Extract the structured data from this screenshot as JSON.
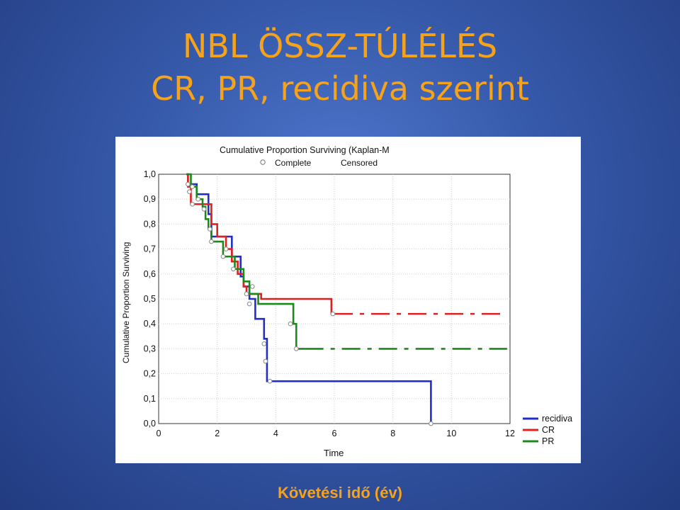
{
  "slide": {
    "title_line1": "NBL ÖSSZ-TÚLÉLÉS",
    "title_line2": "CR, PR, recidiva szerint",
    "footer": "Követési idő (év)",
    "title_color": "#f7a21b"
  },
  "chart_data": {
    "type": "line",
    "title": "Cumulative Proportion Surviving (Kaplan-M",
    "marker_legend": [
      "Complete",
      "Censored"
    ],
    "xlabel": "Time",
    "ylabel": "Cumulative Proportion Surviving",
    "xlim": [
      0,
      12
    ],
    "ylim": [
      0,
      1
    ],
    "x_ticks": [
      "0",
      "2",
      "4",
      "6",
      "8",
      "10",
      "12"
    ],
    "y_ticks": [
      "0,0",
      "0,1",
      "0,2",
      "0,3",
      "0,4",
      "0,5",
      "0,6",
      "0,7",
      "0,8",
      "0,9",
      "1,0"
    ],
    "legend_position": "bottom-right",
    "series": [
      {
        "name": "recidiva",
        "color": "#1f2fc8",
        "dashed_from": 5.7,
        "steps": [
          [
            0.95,
            1.0
          ],
          [
            1.0,
            0.96
          ],
          [
            1.3,
            0.92
          ],
          [
            1.7,
            0.84
          ],
          [
            1.8,
            0.75
          ],
          [
            2.5,
            0.67
          ],
          [
            2.8,
            0.59
          ],
          [
            2.9,
            0.55
          ],
          [
            3.1,
            0.5
          ],
          [
            3.3,
            0.42
          ],
          [
            3.6,
            0.34
          ],
          [
            3.7,
            0.17
          ],
          [
            9.3,
            0.0
          ]
        ],
        "end_x": 9.3,
        "censored": [
          [
            3.6,
            0.32
          ],
          [
            3.65,
            0.25
          ],
          [
            3.8,
            0.17
          ],
          [
            9.3,
            0.0
          ]
        ]
      },
      {
        "name": "CR",
        "color": "#e02020",
        "dashed_from": 6.0,
        "steps": [
          [
            0.95,
            1.0
          ],
          [
            1.0,
            0.95
          ],
          [
            1.1,
            0.88
          ],
          [
            1.6,
            0.88
          ],
          [
            1.8,
            0.8
          ],
          [
            2.0,
            0.75
          ],
          [
            2.3,
            0.7
          ],
          [
            2.5,
            0.65
          ],
          [
            2.7,
            0.6
          ],
          [
            2.9,
            0.55
          ],
          [
            3.0,
            0.52
          ],
          [
            3.5,
            0.5
          ],
          [
            5.9,
            0.44
          ]
        ],
        "end_x": 11.9,
        "censored": [
          [
            1.0,
            0.96
          ],
          [
            1.05,
            0.93
          ],
          [
            1.15,
            0.88
          ],
          [
            2.3,
            0.7
          ],
          [
            3.2,
            0.55
          ],
          [
            5.95,
            0.44
          ]
        ]
      },
      {
        "name": "PR",
        "color": "#1a8a1a",
        "dashed_from": 5.0,
        "steps": [
          [
            0.95,
            1.0
          ],
          [
            1.1,
            0.95
          ],
          [
            1.3,
            0.9
          ],
          [
            1.5,
            0.87
          ],
          [
            1.6,
            0.82
          ],
          [
            1.7,
            0.78
          ],
          [
            1.8,
            0.73
          ],
          [
            2.2,
            0.67
          ],
          [
            2.6,
            0.62
          ],
          [
            2.9,
            0.57
          ],
          [
            3.1,
            0.52
          ],
          [
            3.4,
            0.48
          ],
          [
            4.6,
            0.4
          ],
          [
            4.7,
            0.3
          ]
        ],
        "end_x": 11.9,
        "censored": [
          [
            1.15,
            0.95
          ],
          [
            1.35,
            0.9
          ],
          [
            1.55,
            0.86
          ],
          [
            1.75,
            0.78
          ],
          [
            1.8,
            0.73
          ],
          [
            2.2,
            0.67
          ],
          [
            2.55,
            0.62
          ],
          [
            3.0,
            0.52
          ],
          [
            3.1,
            0.48
          ],
          [
            4.5,
            0.4
          ],
          [
            4.7,
            0.3
          ]
        ]
      }
    ]
  }
}
